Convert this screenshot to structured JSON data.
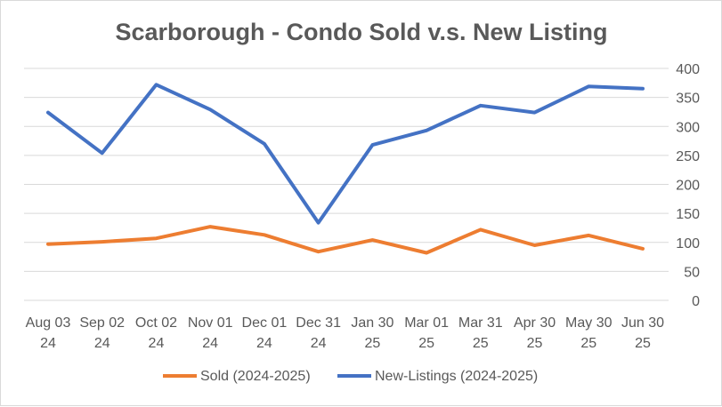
{
  "chart_data": {
    "type": "line",
    "title": "Scarborough - Condo Sold v.s. New Listing",
    "xlabel": "",
    "ylabel": "",
    "categories": [
      [
        "Aug 03",
        "24"
      ],
      [
        "Sep 02",
        "24"
      ],
      [
        "Oct 02",
        "24"
      ],
      [
        "Nov 01",
        "24"
      ],
      [
        "Dec 01",
        "24"
      ],
      [
        "Dec 31",
        "24"
      ],
      [
        "Jan 30",
        "25"
      ],
      [
        "Mar 01",
        "25"
      ],
      [
        "Mar 31",
        "25"
      ],
      [
        "Apr 30",
        "25"
      ],
      [
        "May 30",
        "25"
      ],
      [
        "Jun 30",
        "25"
      ]
    ],
    "ylim": [
      0,
      400
    ],
    "yticks": [
      0,
      50,
      100,
      150,
      200,
      250,
      300,
      350,
      400
    ],
    "y_axis_side": "right",
    "grid": true,
    "legend_position": "bottom",
    "series": [
      {
        "name": "Sold (2024-2025)",
        "color": "#ED7D31",
        "values": [
          97,
          101,
          107,
          127,
          113,
          84,
          104,
          82,
          122,
          95,
          112,
          89
        ]
      },
      {
        "name": "New-Listings (2024-2025)",
        "color": "#4472C4",
        "values": [
          324,
          254,
          372,
          329,
          270,
          134,
          268,
          293,
          336,
          324,
          369,
          365
        ]
      }
    ]
  },
  "colors": {
    "grid": "#d9d9d9",
    "text": "#595959",
    "background": "#ffffff"
  }
}
